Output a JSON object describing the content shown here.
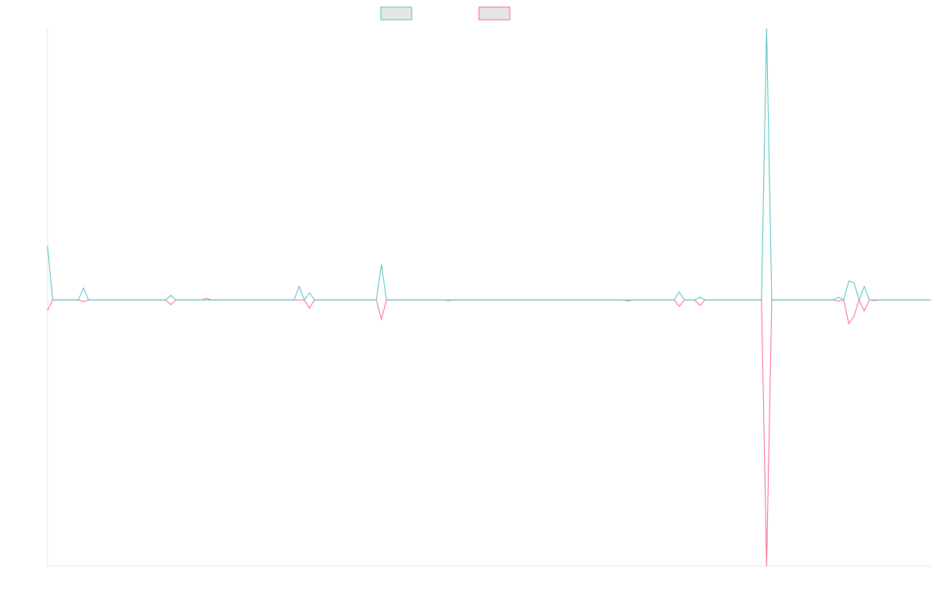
{
  "chart_data": {
    "type": "line",
    "categories": [
      null,
      null,
      null,
      null,
      null,
      null,
      null,
      null,
      null,
      null,
      null,
      null,
      null,
      null,
      null,
      null,
      null,
      null,
      null,
      null,
      null,
      null,
      null,
      null,
      null,
      null,
      null,
      null,
      null,
      null,
      null,
      null,
      null,
      null,
      null,
      null,
      null,
      null,
      null,
      null,
      null,
      null,
      null,
      null,
      null,
      null,
      null,
      null,
      null,
      null,
      null,
      null,
      null,
      null,
      null,
      null,
      null,
      null,
      null,
      null,
      null,
      null,
      null,
      null,
      null,
      null,
      null,
      null,
      null,
      null,
      null,
      null,
      null,
      null,
      null,
      null,
      null,
      null,
      null,
      null,
      null,
      null,
      null,
      null,
      null,
      null,
      null,
      null,
      null,
      null,
      null,
      null,
      null,
      null,
      null,
      null,
      null,
      null,
      null,
      null,
      null,
      null,
      null,
      null,
      null,
      null,
      null,
      null,
      null,
      null,
      null,
      null,
      null,
      null,
      null,
      null,
      null,
      null,
      null,
      null,
      null,
      null,
      null,
      null,
      null,
      null,
      null,
      null,
      null,
      null,
      null,
      null,
      null,
      null,
      null,
      null,
      null,
      null,
      null,
      null,
      null,
      null,
      null,
      null,
      null,
      null,
      null,
      null,
      null,
      null,
      null,
      null,
      null,
      null,
      null,
      null,
      null,
      null,
      null,
      null,
      null,
      null,
      null,
      null,
      null,
      null,
      null,
      null,
      null,
      null,
      null,
      null,
      null
    ],
    "series": [
      {
        "color": "#4bc0c0",
        "values": [
          20,
          0,
          0,
          0,
          0,
          0,
          0,
          4.4,
          0,
          0,
          0,
          0,
          0,
          0,
          0,
          0,
          0,
          0,
          0,
          0,
          0,
          0,
          0,
          0,
          1.7,
          0,
          0,
          0,
          0,
          0,
          0,
          0,
          0,
          0,
          0,
          0,
          0,
          0,
          0,
          0,
          0,
          0,
          0,
          0,
          0,
          0,
          0,
          0,
          0,
          5,
          0,
          2.6,
          0,
          0,
          0,
          0,
          0,
          0,
          0,
          0,
          0,
          0,
          0,
          0,
          0,
          13,
          0,
          0,
          0,
          0,
          0,
          0,
          0,
          0,
          0,
          0,
          0,
          0,
          0,
          0,
          0,
          0,
          0,
          0,
          0,
          0,
          0,
          0,
          0,
          0,
          0,
          0,
          0,
          0,
          0,
          0,
          0,
          0,
          0,
          0,
          0,
          0,
          0,
          0,
          0,
          0,
          0,
          0,
          0,
          0,
          0,
          0,
          0,
          0,
          0,
          0,
          0,
          0,
          0,
          0,
          0,
          0,
          0,
          3,
          0,
          0,
          0,
          1,
          0,
          0,
          0,
          0,
          0,
          0,
          0,
          0,
          0,
          0,
          0,
          0,
          100,
          0,
          0,
          0,
          0,
          0,
          0,
          0,
          0,
          0,
          0,
          0,
          0,
          0,
          1,
          0,
          7,
          6.4,
          0,
          5,
          0,
          0,
          0,
          0,
          0,
          0,
          0,
          0,
          0,
          0,
          0,
          0,
          0
        ]
      },
      {
        "color": "#ff6384",
        "values": [
          -3.8,
          0,
          0,
          0,
          0,
          0,
          0,
          -0.6,
          0,
          0,
          0,
          0,
          0,
          0,
          0,
          0,
          0,
          0,
          0,
          0,
          0,
          0,
          0,
          0,
          -1.7,
          0,
          0,
          0,
          0,
          0,
          0,
          0.6,
          0,
          0,
          0,
          0,
          0,
          0,
          0,
          0,
          0,
          0,
          0,
          0,
          0,
          0,
          0,
          0,
          0,
          0,
          0,
          -3,
          0,
          0,
          0,
          0,
          0,
          0,
          0,
          0,
          0,
          0,
          0,
          0,
          0,
          -7,
          0,
          0,
          0,
          0,
          0,
          0,
          0,
          0,
          0,
          0,
          0,
          0,
          -0.2,
          0,
          0,
          0,
          0,
          0,
          0,
          0,
          0,
          0,
          0,
          0,
          0,
          0,
          0,
          0,
          0,
          0,
          0,
          0,
          0,
          0,
          0,
          0,
          0,
          0,
          0,
          0,
          0,
          0,
          0,
          0,
          0,
          0,
          0,
          -0.3,
          0,
          0,
          0,
          0,
          0,
          0,
          0,
          0,
          0,
          -2.3,
          0,
          0,
          0,
          -2,
          0,
          0,
          0,
          0,
          0,
          0,
          0,
          0,
          0,
          0,
          0,
          0,
          -98,
          0,
          0,
          0,
          0,
          0,
          0,
          0,
          0,
          0,
          0,
          0,
          0,
          0,
          -0.4,
          0,
          -8.7,
          -6,
          0,
          -4,
          0,
          -0.2,
          0,
          0,
          0,
          0,
          0,
          0,
          0,
          0,
          0,
          0,
          0
        ]
      }
    ],
    "ylim": [
      -98,
      100
    ]
  }
}
